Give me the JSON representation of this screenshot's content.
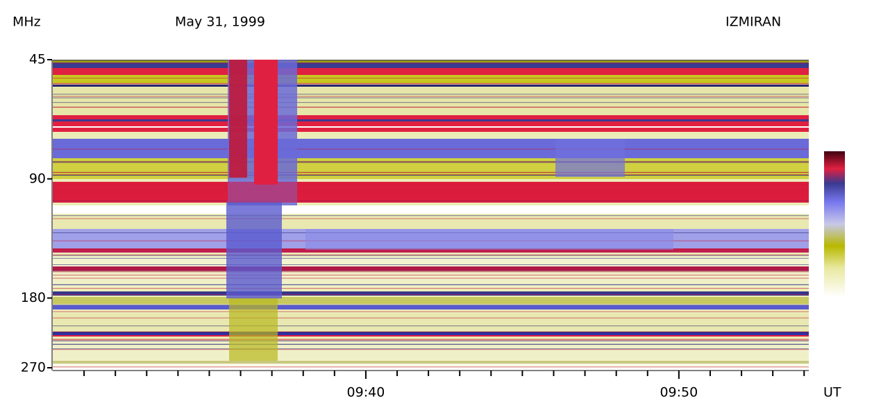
{
  "chart_data": {
    "type": "spectrogram",
    "title": "May 31, 1999",
    "source": "IZMIRAN",
    "y_label": "MHz",
    "x_label": "UT",
    "y_scale": "log",
    "ylim": [
      45,
      270
    ],
    "yticks": [
      45,
      90,
      180,
      270
    ],
    "xlim": [
      570,
      594.15
    ],
    "xticks": [
      {
        "value": 580,
        "label": "09:40"
      },
      {
        "value": 590,
        "label": "09:50"
      }
    ],
    "x_minor_ticks": [
      571,
      572,
      573,
      574,
      575,
      576,
      577,
      578,
      579,
      581,
      582,
      583,
      584,
      585,
      586,
      587,
      588,
      589,
      591,
      592,
      593,
      594
    ]
  }
}
